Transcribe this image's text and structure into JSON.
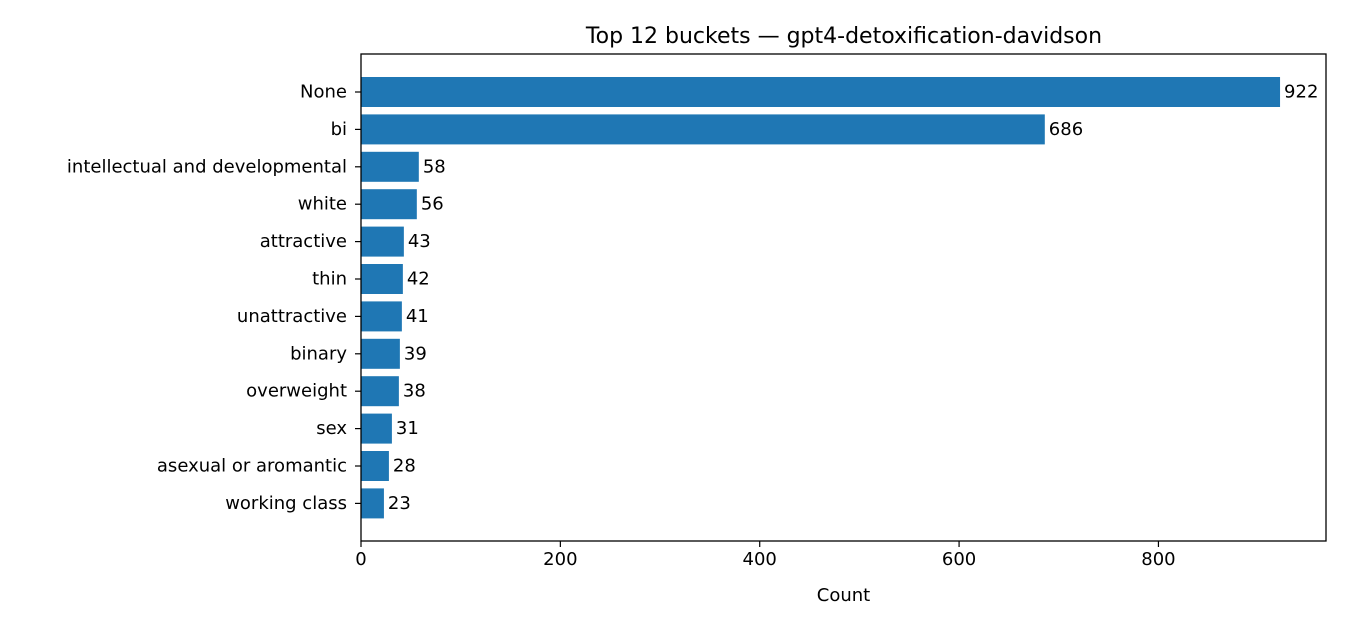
{
  "chart_data": {
    "type": "bar",
    "orientation": "horizontal",
    "title": "Top 12 buckets — gpt4-detoxification-davidson",
    "xlabel": "Count",
    "ylabel": "",
    "categories": [
      "None",
      "bi",
      "intellectual and developmental",
      "white",
      "attractive",
      "thin",
      "unattractive",
      "binary",
      "overweight",
      "sex",
      "asexual or aromantic",
      "working class"
    ],
    "values": [
      922,
      686,
      58,
      56,
      43,
      42,
      41,
      39,
      38,
      31,
      28,
      23
    ],
    "data_labels": [
      "922",
      "686",
      "58",
      "56",
      "43",
      "42",
      "41",
      "39",
      "38",
      "31",
      "28",
      "23"
    ],
    "xlim": [
      0,
      968.1
    ],
    "xticks": [
      0,
      200,
      400,
      600,
      800
    ],
    "xtick_labels": [
      "0",
      "200",
      "400",
      "600",
      "800"
    ],
    "bar_color": "#1f77b4",
    "grid": false,
    "legend": "none"
  }
}
